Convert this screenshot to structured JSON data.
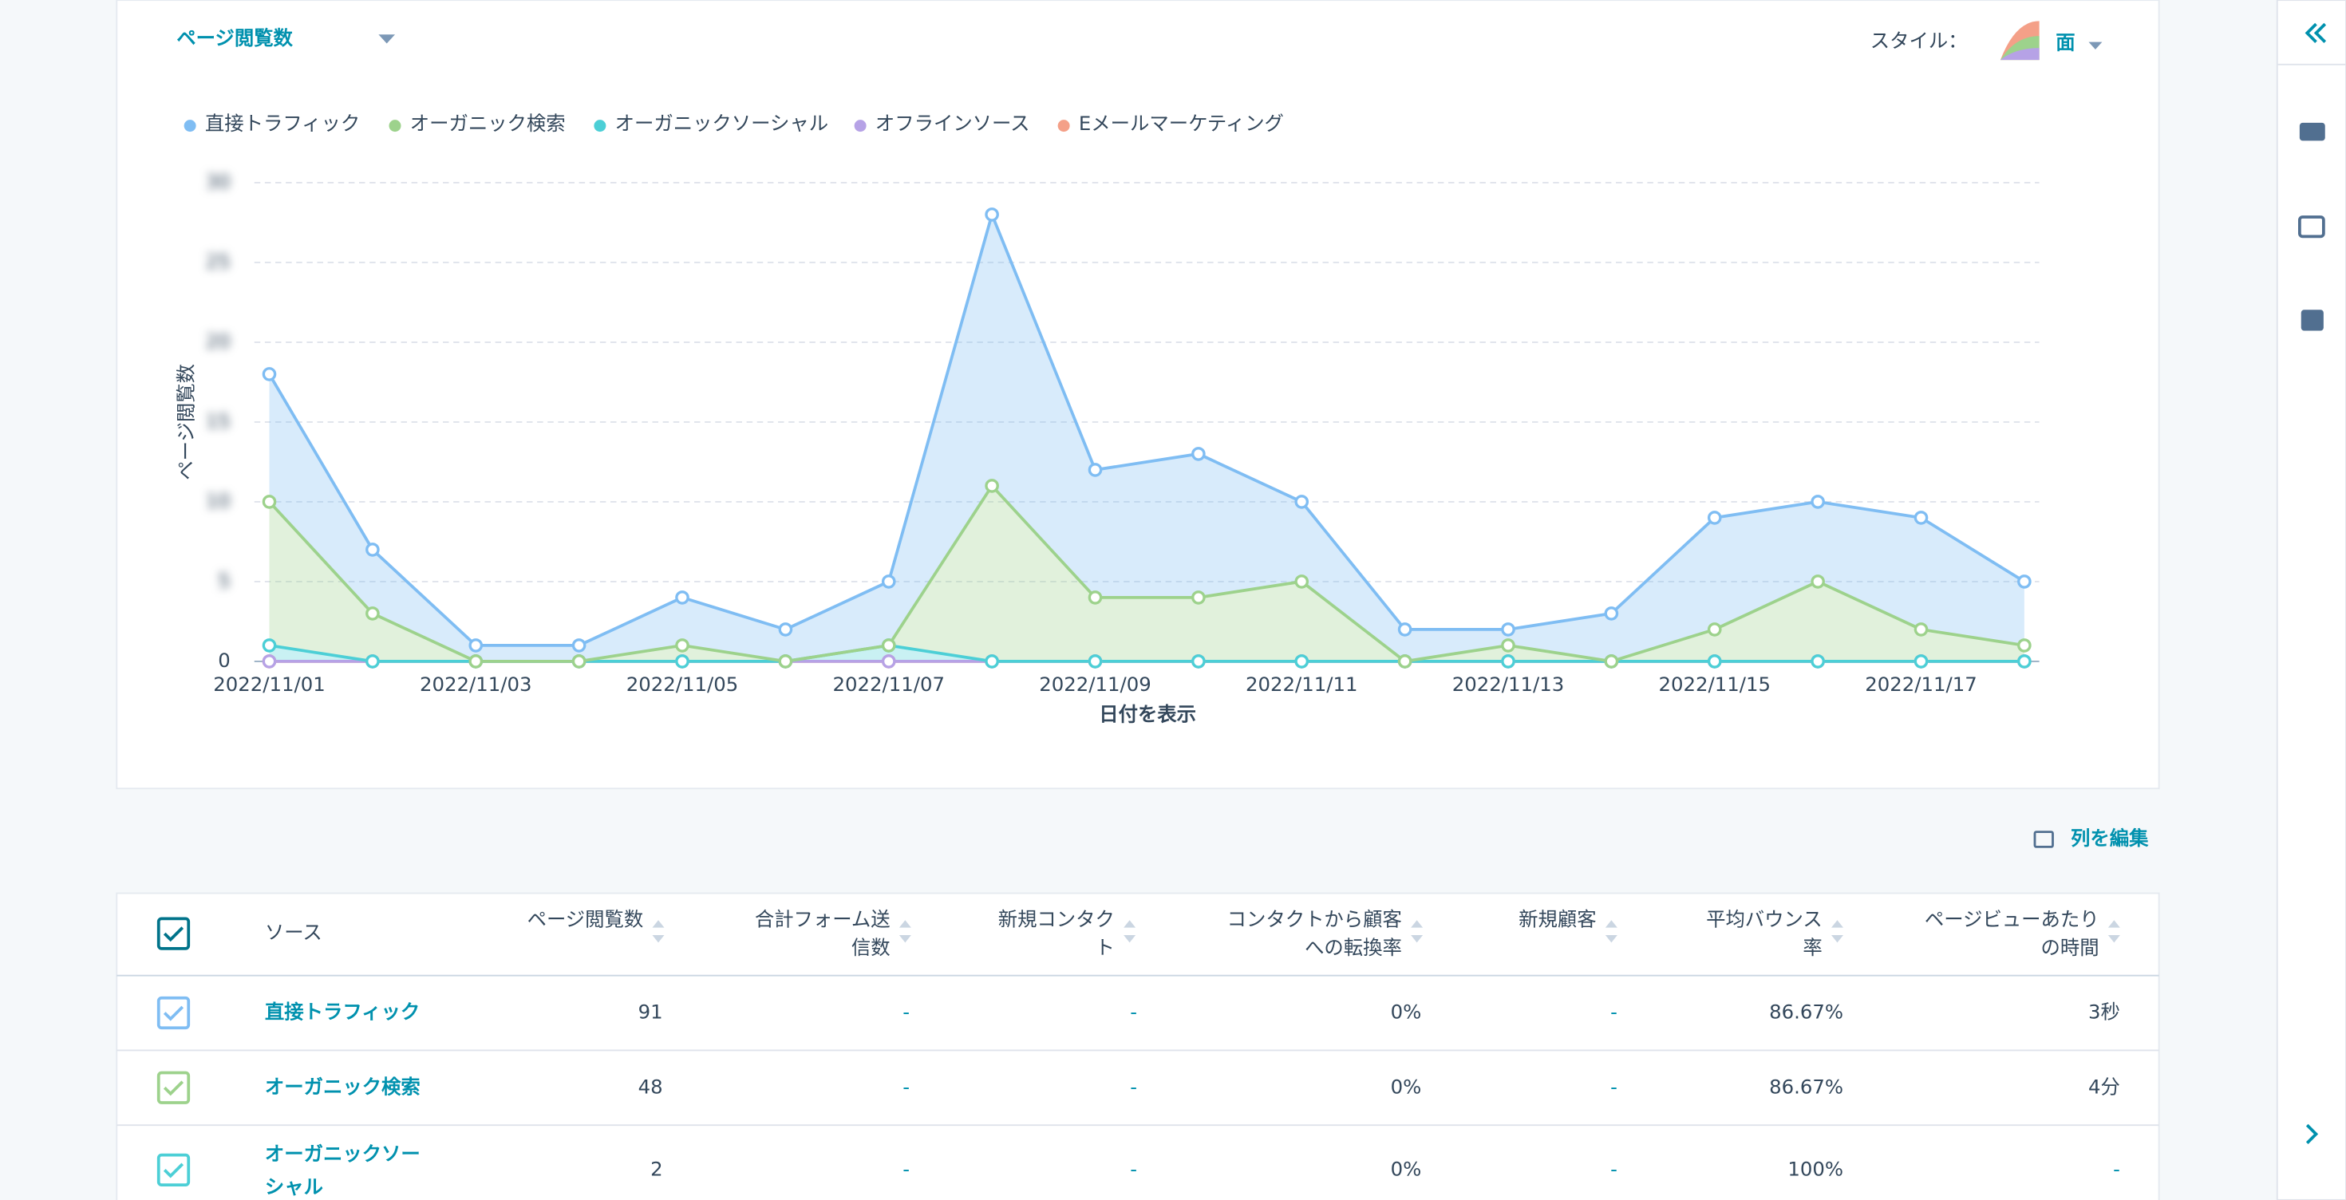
{
  "chart_data": {
    "type": "area",
    "title": "ページ閲覧数",
    "style_label": "スタイル：",
    "style_value": "面",
    "y_label": "ページ閲覧数",
    "x_label": "日付を表示",
    "stacked": true,
    "grid": true,
    "categories": [
      "2022/11/01",
      null,
      "2022/11/03",
      null,
      "2022/11/05",
      null,
      "2022/11/07",
      null,
      "2022/11/09",
      null,
      "2022/11/11",
      null,
      "2022/11/13",
      null,
      "2022/11/15",
      null,
      "2022/11/17",
      null
    ],
    "series": [
      {
        "name": "直接トラフィック",
        "color": "#7fbdf3",
        "values": [
          8,
          4,
          1,
          1,
          3,
          2,
          4,
          17,
          8,
          9,
          5,
          2,
          1,
          3,
          7,
          5,
          7,
          4
        ]
      },
      {
        "name": "オーガニック検索",
        "color": "#9dd28c",
        "values": [
          9,
          3,
          0,
          0,
          1,
          0,
          0,
          11,
          4,
          4,
          5,
          0,
          1,
          0,
          2,
          5,
          2,
          1
        ]
      },
      {
        "name": "オーガニックソーシャル",
        "color": "#4ccfd6",
        "values": [
          1,
          0,
          0,
          0,
          0,
          0,
          1,
          0,
          0,
          0,
          0,
          0,
          0,
          0,
          0,
          0,
          0,
          0
        ]
      },
      {
        "name": "オフラインソース",
        "color": "#b6a2e6",
        "values": [
          0,
          0,
          0,
          0,
          0,
          0,
          0,
          0,
          0,
          0,
          0,
          0,
          0,
          0,
          0,
          0,
          0,
          0
        ]
      },
      {
        "name": "Eメールマーケティング",
        "color": "#f4a088",
        "values": [
          0,
          0,
          0,
          0,
          0,
          0,
          0,
          0,
          0,
          0,
          0,
          0,
          0,
          0,
          0,
          0,
          0,
          0
        ]
      }
    ],
    "ylim": [
      0,
      30
    ],
    "yticks": [
      0,
      5,
      10,
      15,
      20,
      25,
      30
    ]
  },
  "edit_columns": "列を編集",
  "table": {
    "headers": [
      [
        "ソース"
      ],
      [
        "ページ閲覧数"
      ],
      [
        "合計フォーム送",
        "信数"
      ],
      [
        "新規コンタク",
        "ト"
      ],
      [
        "コンタクトから顧客",
        "への転換率"
      ],
      [
        "新規顧客"
      ],
      [
        "平均バウンス",
        "率"
      ],
      [
        "ページビューあたり",
        "の時間"
      ]
    ],
    "rows": [
      {
        "name": [
          "直接トラフィック"
        ],
        "cells": [
          "91",
          "-",
          "-",
          "0%",
          "-",
          "86.67%",
          "3秒"
        ]
      },
      {
        "name": [
          "オーガニック検索"
        ],
        "cells": [
          "48",
          "-",
          "-",
          "0%",
          "-",
          "86.67%",
          "4分"
        ]
      },
      {
        "name": [
          "オーガニックソー",
          "シャル"
        ],
        "cells": [
          "2",
          "-",
          "-",
          "0%",
          "-",
          "100%",
          "-"
        ]
      }
    ]
  }
}
